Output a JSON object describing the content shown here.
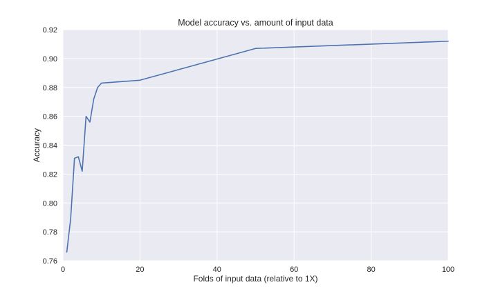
{
  "chart_data": {
    "type": "line",
    "title": "Model accuracy vs. amount of input data",
    "xlabel": "Folds of input data (relative to 1X)",
    "ylabel": "Accuracy",
    "xlim": [
      0,
      100
    ],
    "ylim": [
      0.76,
      0.92
    ],
    "xticks": [
      0,
      20,
      40,
      60,
      80,
      100
    ],
    "xtick_labels": [
      "0",
      "20",
      "40",
      "60",
      "80",
      "100"
    ],
    "yticks": [
      0.76,
      0.78,
      0.8,
      0.82,
      0.84,
      0.86,
      0.88,
      0.9,
      0.92
    ],
    "ytick_labels": [
      "0.76",
      "0.78",
      "0.80",
      "0.82",
      "0.84",
      "0.86",
      "0.88",
      "0.90",
      "0.92"
    ],
    "grid": true,
    "series": [
      {
        "color": "#4c72b0",
        "x": [
          1,
          2,
          3,
          4,
          5,
          6,
          7,
          8,
          9,
          10,
          20,
          50,
          100
        ],
        "y": [
          0.766,
          0.789,
          0.831,
          0.832,
          0.822,
          0.86,
          0.856,
          0.872,
          0.88,
          0.883,
          0.885,
          0.907,
          0.912
        ]
      }
    ],
    "background_color": "#eaeaf2",
    "grid_color": "#ffffff"
  }
}
